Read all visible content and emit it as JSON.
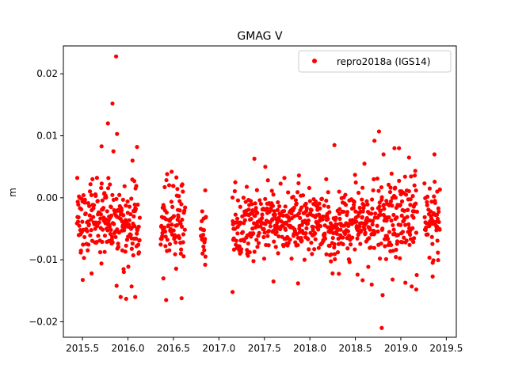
{
  "chart_data": {
    "type": "scatter",
    "title": "GMAG V",
    "xlabel": "",
    "ylabel": "m",
    "xlim": [
      2015.29,
      2019.61
    ],
    "ylim": [
      -0.0225,
      0.0245
    ],
    "x_ticks": [
      2015.5,
      2016.0,
      2016.5,
      2017.0,
      2017.5,
      2018.0,
      2018.5,
      2019.0,
      2019.5
    ],
    "x_tick_labels": [
      "2015.5",
      "2016.0",
      "2016.5",
      "2017.0",
      "2017.5",
      "2018.0",
      "2018.5",
      "2019.0",
      "2019.5"
    ],
    "y_ticks": [
      -0.02,
      -0.01,
      0.0,
      0.01,
      0.02
    ],
    "y_tick_labels": [
      "−0.02",
      "−0.01",
      "0.00",
      "0.01",
      "0.02"
    ],
    "grid": false,
    "legend_position": "top-right",
    "series": [
      {
        "name": "repro2018a (IGS14)",
        "color": "#ff0000",
        "marker": "circle",
        "segments": [
          {
            "x_start": 2015.44,
            "x_end": 2016.13,
            "center": -0.0035,
            "spread": 0.0045
          },
          {
            "x_start": 2016.36,
            "x_end": 2016.63,
            "center": -0.0045,
            "spread": 0.004
          },
          {
            "x_start": 2016.8,
            "x_end": 2016.86,
            "center": -0.005,
            "spread": 0.0035
          },
          {
            "x_start": 2017.15,
            "x_end": 2018.72,
            "center": -0.004,
            "spread": 0.0035
          },
          {
            "x_start": 2018.74,
            "x_end": 2019.18,
            "center": -0.004,
            "spread": 0.0045
          },
          {
            "x_start": 2019.26,
            "x_end": 2019.43,
            "center": -0.004,
            "spread": 0.004
          }
        ],
        "highlights": [
          {
            "x": 2015.87,
            "y": 0.0228
          },
          {
            "x": 2015.83,
            "y": 0.0152
          },
          {
            "x": 2015.78,
            "y": 0.012
          },
          {
            "x": 2015.88,
            "y": 0.0103
          },
          {
            "x": 2015.71,
            "y": 0.0083
          },
          {
            "x": 2016.1,
            "y": 0.0082
          },
          {
            "x": 2016.05,
            "y": 0.006
          },
          {
            "x": 2015.84,
            "y": 0.0075
          },
          {
            "x": 2015.92,
            "y": -0.016
          },
          {
            "x": 2015.98,
            "y": -0.0163
          },
          {
            "x": 2016.04,
            "y": -0.0143
          },
          {
            "x": 2016.08,
            "y": -0.016
          },
          {
            "x": 2015.6,
            "y": -0.0122
          },
          {
            "x": 2016.48,
            "y": 0.0042
          },
          {
            "x": 2016.42,
            "y": -0.0165
          },
          {
            "x": 2016.59,
            "y": -0.0162
          },
          {
            "x": 2016.39,
            "y": -0.013
          },
          {
            "x": 2016.85,
            "y": 0.0012
          },
          {
            "x": 2016.82,
            "y": -0.009
          },
          {
            "x": 2017.15,
            "y": -0.0152
          },
          {
            "x": 2017.18,
            "y": 0.0025
          },
          {
            "x": 2017.39,
            "y": 0.0063
          },
          {
            "x": 2017.51,
            "y": 0.005
          },
          {
            "x": 2017.6,
            "y": -0.0135
          },
          {
            "x": 2017.72,
            "y": 0.0032
          },
          {
            "x": 2017.88,
            "y": 0.0036
          },
          {
            "x": 2017.87,
            "y": -0.0138
          },
          {
            "x": 2018.27,
            "y": 0.0085
          },
          {
            "x": 2018.18,
            "y": 0.003
          },
          {
            "x": 2018.6,
            "y": 0.0055
          },
          {
            "x": 2018.58,
            "y": -0.0133
          },
          {
            "x": 2018.25,
            "y": -0.0122
          },
          {
            "x": 2018.68,
            "y": -0.014
          },
          {
            "x": 2018.71,
            "y": 0.0092
          },
          {
            "x": 2018.76,
            "y": 0.0107
          },
          {
            "x": 2018.81,
            "y": 0.007
          },
          {
            "x": 2018.8,
            "y": -0.0157
          },
          {
            "x": 2018.79,
            "y": -0.021
          },
          {
            "x": 2018.93,
            "y": 0.008
          },
          {
            "x": 2018.98,
            "y": 0.008
          },
          {
            "x": 2019.09,
            "y": 0.0065
          },
          {
            "x": 2019.15,
            "y": 0.002
          },
          {
            "x": 2019.12,
            "y": -0.0143
          },
          {
            "x": 2019.17,
            "y": -0.0148
          },
          {
            "x": 2019.05,
            "y": -0.0137
          },
          {
            "x": 2019.37,
            "y": 0.007
          },
          {
            "x": 2019.35,
            "y": -0.0127
          },
          {
            "x": 2019.4,
            "y": 0.001
          }
        ]
      }
    ]
  }
}
